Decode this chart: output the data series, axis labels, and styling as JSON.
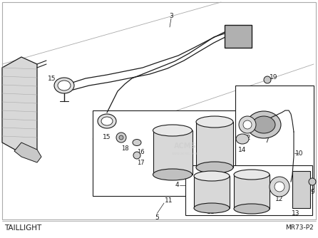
{
  "title": "TAILLIGHT",
  "part_number": "MR73-P2",
  "bg": "#ffffff",
  "fg": "#1a1a1a",
  "gray1": "#cccccc",
  "gray2": "#e8e8e8",
  "gray3": "#aaaaaa",
  "fig_width": 4.46,
  "fig_height": 3.34,
  "dpi": 100
}
